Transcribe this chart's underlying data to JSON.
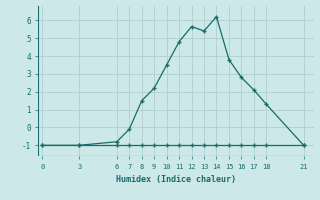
{
  "x_curve": [
    0,
    3,
    6,
    7,
    8,
    9,
    10,
    11,
    12,
    13,
    14,
    15,
    16,
    17,
    18,
    21
  ],
  "y_curve": [
    -1,
    -1,
    -0.8,
    -0.1,
    1.5,
    2.2,
    3.5,
    4.8,
    5.65,
    5.4,
    6.2,
    3.8,
    2.8,
    2.1,
    1.3,
    -1
  ],
  "x_flat": [
    0,
    3,
    6,
    7,
    8,
    9,
    10,
    11,
    12,
    13,
    14,
    15,
    16,
    17,
    18,
    21
  ],
  "y_flat": [
    -1,
    -1,
    -1,
    -1,
    -1,
    -1,
    -1,
    -1,
    -1,
    -1,
    -1,
    -1,
    -1,
    -1,
    -1,
    -1
  ],
  "line_color": "#1a6b6b",
  "marker": "+",
  "marker_size": 3,
  "bg_color": "#cce8e8",
  "grid_color": "#b0cece",
  "xlabel": "Humidex (Indice chaleur)",
  "xticks": [
    0,
    3,
    6,
    7,
    8,
    9,
    10,
    11,
    12,
    13,
    14,
    15,
    16,
    17,
    18,
    21
  ],
  "yticks": [
    -1,
    0,
    1,
    2,
    3,
    4,
    5,
    6
  ],
  "ylim": [
    -1.6,
    6.8
  ],
  "xlim": [
    -0.3,
    21.8
  ],
  "figw": 3.2,
  "figh": 2.0,
  "dpi": 100
}
